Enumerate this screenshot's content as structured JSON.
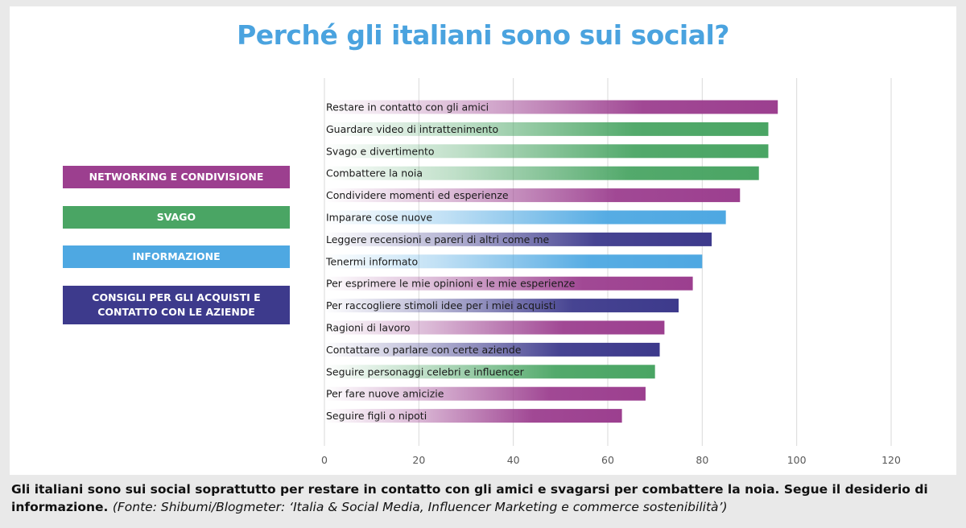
{
  "chart_data": {
    "type": "bar",
    "orientation": "horizontal",
    "title": "Perché gli italiani sono sui social?",
    "xlim": [
      0,
      120
    ],
    "x_ticks": [
      0,
      20,
      40,
      60,
      80,
      100,
      120
    ],
    "grid": true,
    "legend_placement": "left",
    "groups": [
      {
        "label": "NETWORKING E CONDIVISIONE",
        "color": "#9c3f8f"
      },
      {
        "label": "SVAGO",
        "color": "#4aa564"
      },
      {
        "label": "INFORMAZIONE",
        "color": "#4ea8e2"
      },
      {
        "label": "CONSIGLI PER GLI ACQUISTI E CONTATTO CON LE AZIENDE",
        "color": "#3d3a8c"
      }
    ],
    "categories": [
      "Restare in contatto con gli amici",
      "Guardare video di intrattenimento",
      "Svago e divertimento",
      "Combattere la noia",
      "Condividere momenti  ed esperienze",
      "Imparare cose nuove",
      "Leggere recensioni e pareri di altri come me",
      "Tenermi informato",
      "Per esprimere le mie opinioni e le mie esperienze",
      "Per raccogliere stimoli idee per i miei acquisti",
      "Ragioni di lavoro",
      "Contattare o parlare con certe aziende",
      "Seguire personaggi celebri e influencer",
      "Per fare nuove amicizie",
      "Seguire figli o nipoti"
    ],
    "values": [
      96,
      94,
      94,
      92,
      88,
      85,
      82,
      80,
      78,
      75,
      72,
      71,
      70,
      68,
      63
    ],
    "bar_groups": [
      "NETWORKING E CONDIVISIONE",
      "SVAGO",
      "SVAGO",
      "SVAGO",
      "NETWORKING E CONDIVISIONE",
      "INFORMAZIONE",
      "CONSIGLI PER GLI ACQUISTI E CONTATTO CON LE AZIENDE",
      "INFORMAZIONE",
      "NETWORKING E CONDIVISIONE",
      "CONSIGLI PER GLI ACQUISTI E CONTATTO CON LE AZIENDE",
      "NETWORKING E CONDIVISIONE",
      "CONSIGLI PER GLI ACQUISTI E CONTATTO CON LE AZIENDE",
      "SVAGO",
      "NETWORKING E CONDIVISIONE",
      "NETWORKING E CONDIVISIONE"
    ]
  },
  "legend": {
    "networking": "NETWORKING E CONDIVISIONE",
    "svago": "SVAGO",
    "informazione": "INFORMAZIONE",
    "consigli_line1": "CONSIGLI PER GLI ACQUISTI E",
    "consigli_line2": "CONTATTO CON LE AZIENDE"
  },
  "caption": {
    "main": "Gli italiani sono sui social soprattutto per restare in contatto con gli amici e svagarsi per combattere la noia. Segue il desiderio di informazione.",
    "source": "(Fonte: Shibumi/Blogmeter: ‘Italia & Social Media, Influencer Marketing e commerce sostenibilità’)"
  }
}
